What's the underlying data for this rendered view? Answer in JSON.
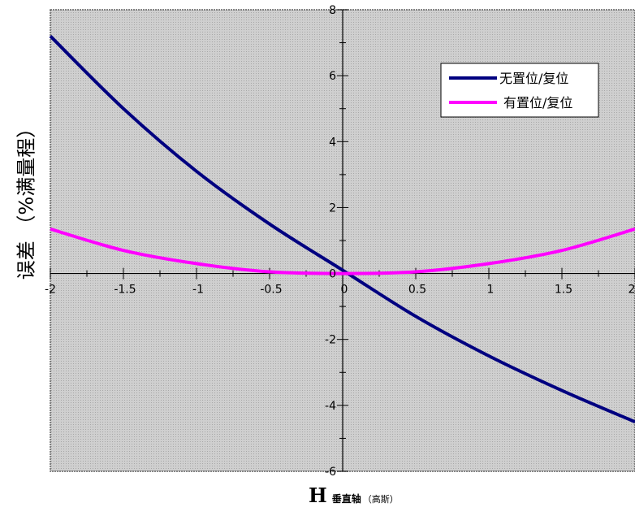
{
  "chart_data": {
    "type": "line",
    "xlabel_main": "H",
    "xlabel_mid": "垂直轴",
    "xlabel_unit": "（高斯）",
    "ylabel": "误差 （%满量程）",
    "xlim": [
      -2,
      2
    ],
    "ylim": [
      -6,
      8
    ],
    "xticks": [
      -2,
      -1.5,
      -1,
      -0.5,
      0,
      0.5,
      1,
      1.5,
      2
    ],
    "yticks": [
      -6,
      -4,
      -2,
      0,
      2,
      4,
      6,
      8
    ],
    "xtick_labels": [
      "-2",
      "-1.5",
      "-1",
      "-0.5",
      "0",
      "0.5",
      "1",
      "1.5",
      "2"
    ],
    "ytick_labels": [
      "-6",
      "-4",
      "-2",
      "0",
      "2",
      "4",
      "6",
      "8"
    ],
    "grid": false,
    "legend_position": "top-right",
    "background": "#c8c8c8",
    "series": [
      {
        "name": "无置位/复位",
        "color": "#000080",
        "x": [
          -2,
          -1.5,
          -1,
          -0.5,
          0,
          0.5,
          1,
          1.5,
          2
        ],
        "y": [
          7.2,
          5.0,
          3.1,
          1.5,
          0.1,
          -1.3,
          -2.5,
          -3.55,
          -4.5
        ]
      },
      {
        "name": "有置位/复位",
        "color": "#ff00ff",
        "x": [
          -2,
          -1.5,
          -1,
          -0.5,
          0,
          0.5,
          1,
          1.5,
          2
        ],
        "y": [
          1.35,
          0.7,
          0.3,
          0.05,
          0.0,
          0.05,
          0.3,
          0.7,
          1.35
        ]
      }
    ]
  }
}
